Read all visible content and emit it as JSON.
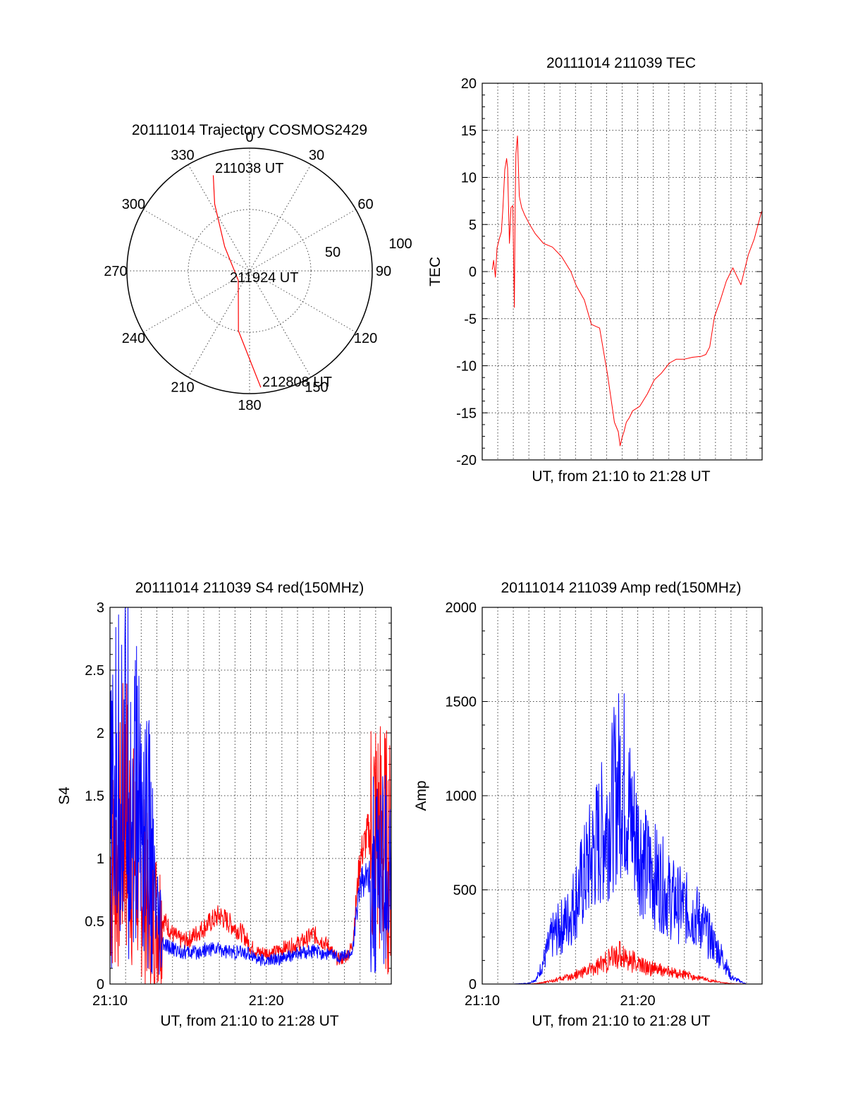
{
  "colors": {
    "red": "#ff0000",
    "blue": "#0000ff",
    "axis": "#000000",
    "grid": "#444444"
  },
  "chart_data": [
    {
      "type": "scatter",
      "kind": "polar-trajectory",
      "title": "20111014 Trajectory COSMOS2429",
      "angle_labels": [
        "0",
        "30",
        "60",
        "90",
        "120",
        "150",
        "180",
        "210",
        "240",
        "270",
        "300",
        "330"
      ],
      "radial_labels": [
        "50",
        "100"
      ],
      "radial_max": 100,
      "annotations": [
        "211038 UT",
        "211924 UT",
        "212808 UT"
      ],
      "grid": true,
      "series": [
        {
          "color": "#ff0000",
          "points": [
            [
              339.2,
              83.3
            ],
            [
              332.4,
              61.4
            ],
            [
              314.2,
              28.3
            ],
            [
              230.1,
              12.0
            ],
            [
              190.5,
              49.7
            ],
            [
              174.5,
              95.4
            ]
          ]
        }
      ]
    },
    {
      "type": "line",
      "title": "20111014 211039 TEC",
      "xlabel": "UT, from 21:10 to 21:28 UT",
      "ylabel": "TEC",
      "xlim": [
        "21:10:00",
        "21:28:00"
      ],
      "ylim": [
        -20,
        20
      ],
      "yticks": [
        "20",
        "15",
        "10",
        "5",
        "0",
        "-5",
        "-10",
        "-15",
        "-20"
      ],
      "grid": true,
      "series": [
        {
          "color": "#ff0000",
          "x": [
            "21:10:39",
            "21:10:44",
            "21:10:51",
            "21:10:57",
            "21:11:06",
            "21:11:14",
            "21:11:20",
            "21:11:27",
            "21:11:34",
            "21:11:38",
            "21:11:45",
            "21:11:51",
            "21:11:58",
            "21:12:04",
            "21:12:07",
            "21:12:10",
            "21:12:16",
            "21:12:23",
            "21:12:32",
            "21:12:44",
            "21:13:03",
            "21:13:25",
            "21:13:56",
            "21:14:31",
            "21:15:06",
            "21:15:42",
            "21:16:03",
            "21:16:34",
            "21:17:01",
            "21:17:33",
            "21:18:04",
            "21:18:30",
            "21:18:45",
            "21:18:52",
            "21:19:00",
            "21:19:07",
            "21:19:16",
            "21:19:28",
            "21:19:40",
            "21:20:08",
            "21:20:37",
            "21:21:04",
            "21:21:31",
            "21:22:03",
            "21:22:29",
            "21:23:00",
            "21:23:31",
            "21:24:06",
            "21:24:23",
            "21:24:38",
            "21:24:56",
            "21:25:17",
            "21:25:42",
            "21:26:07",
            "21:26:38",
            "21:27:07",
            "21:27:30",
            "21:27:58"
          ],
          "y": [
            0.2,
            1.2,
            -0.6,
            2.5,
            3.5,
            4.2,
            6.8,
            10.8,
            12.0,
            11.0,
            3.0,
            6.8,
            7.0,
            -3.8,
            7.0,
            12.5,
            14.4,
            8.0,
            6.8,
            6.0,
            5.0,
            4.0,
            3.0,
            2.6,
            1.6,
            0.0,
            -1.5,
            -3.0,
            -5.6,
            -6.0,
            -11.0,
            -16.0,
            -17.0,
            -18.5,
            -17.6,
            -17.0,
            -16.0,
            -15.5,
            -14.8,
            -14.3,
            -13.0,
            -11.5,
            -10.8,
            -9.7,
            -9.3,
            -9.3,
            -9.1,
            -9.0,
            -8.8,
            -8.0,
            -4.8,
            -3.2,
            -1.0,
            0.4,
            -1.4,
            1.8,
            3.5,
            6.4
          ]
        }
      ]
    },
    {
      "type": "line",
      "title": "20111014 211039 S4 red(150MHz)",
      "xlabel": "UT, from 21:10 to 21:28 UT",
      "ylabel": "S4",
      "xlim": [
        "21:10:00",
        "21:28:00"
      ],
      "ylim": [
        0,
        3
      ],
      "xticks": [
        "21:10",
        "21:20"
      ],
      "yticks": [
        "3",
        "2.5",
        "2",
        "1.5",
        "1",
        "0.5",
        "0"
      ],
      "grid": true,
      "series": [
        {
          "color": "#ff0000",
          "x": [
            "21:10:00",
            "21:10:30",
            "21:11:00",
            "21:11:30",
            "21:12:00",
            "21:12:30",
            "21:13:00",
            "21:13:30",
            "21:14:00",
            "21:14:30",
            "21:15:00",
            "21:15:30",
            "21:16:00",
            "21:16:30",
            "21:17:00",
            "21:17:30",
            "21:18:00",
            "21:18:30",
            "21:19:00",
            "21:19:30",
            "21:20:00",
            "21:20:30",
            "21:21:00",
            "21:21:30",
            "21:22:00",
            "21:22:30",
            "21:23:00",
            "21:23:30",
            "21:24:00",
            "21:24:30",
            "21:25:00",
            "21:25:30",
            "21:26:00",
            "21:26:30",
            "21:27:00",
            "21:27:30",
            "21:28:00"
          ],
          "y": [
            0.9,
            1.0,
            1.4,
            1.0,
            0.9,
            0.6,
            0.55,
            0.5,
            0.4,
            0.35,
            0.35,
            0.4,
            0.45,
            0.5,
            0.55,
            0.5,
            0.45,
            0.4,
            0.3,
            0.25,
            0.25,
            0.25,
            0.28,
            0.3,
            0.32,
            0.35,
            0.4,
            0.35,
            0.3,
            0.2,
            0.2,
            0.3,
            1.0,
            1.2,
            1.2,
            1.1,
            1.0
          ]
        },
        {
          "color": "#0000ff",
          "x": [
            "21:10:00",
            "21:10:30",
            "21:11:00",
            "21:11:30",
            "21:12:00",
            "21:12:30",
            "21:13:00",
            "21:13:30",
            "21:14:00",
            "21:14:30",
            "21:15:00",
            "21:15:30",
            "21:16:00",
            "21:16:30",
            "21:17:00",
            "21:17:30",
            "21:18:00",
            "21:18:30",
            "21:19:00",
            "21:19:30",
            "21:20:00",
            "21:20:30",
            "21:21:00",
            "21:21:30",
            "21:22:00",
            "21:22:30",
            "21:23:00",
            "21:23:30",
            "21:24:00",
            "21:24:30",
            "21:25:00",
            "21:25:30",
            "21:26:00",
            "21:26:30",
            "21:27:00",
            "21:27:30",
            "21:28:00"
          ],
          "y": [
            1.2,
            1.6,
            1.7,
            1.5,
            1.4,
            1.1,
            0.4,
            0.3,
            0.28,
            0.26,
            0.25,
            0.25,
            0.27,
            0.28,
            0.28,
            0.26,
            0.25,
            0.25,
            0.24,
            0.2,
            0.18,
            0.2,
            0.2,
            0.22,
            0.24,
            0.25,
            0.26,
            0.25,
            0.24,
            0.22,
            0.22,
            0.25,
            0.8,
            0.85,
            0.9,
            0.85,
            0.8
          ]
        }
      ]
    },
    {
      "type": "line",
      "title": "20111014 211039 Amp red(150MHz)",
      "xlabel": "UT, from 21:10 to 21:28 UT",
      "ylabel": "Amp",
      "xlim": [
        "21:10:00",
        "21:28:00"
      ],
      "ylim": [
        0,
        2000
      ],
      "xticks": [
        "21:10",
        "21:20"
      ],
      "yticks": [
        "2000",
        "1500",
        "1000",
        "500",
        "0"
      ],
      "grid": true,
      "series": [
        {
          "color": "#0000ff",
          "x": [
            "21:10:00",
            "21:12:00",
            "21:13:00",
            "21:13:30",
            "21:14:00",
            "21:14:30",
            "21:15:00",
            "21:15:30",
            "21:16:00",
            "21:16:30",
            "21:17:00",
            "21:17:30",
            "21:18:00",
            "21:18:30",
            "21:19:00",
            "21:19:30",
            "21:20:00",
            "21:20:30",
            "21:21:00",
            "21:21:30",
            "21:22:00",
            "21:22:30",
            "21:23:00",
            "21:23:30",
            "21:24:00",
            "21:24:30",
            "21:25:00",
            "21:25:30",
            "21:26:00",
            "21:27:00",
            "21:28:00"
          ],
          "y": [
            0,
            0,
            5,
            30,
            150,
            280,
            330,
            380,
            500,
            620,
            750,
            850,
            950,
            1100,
            1250,
            1000,
            850,
            700,
            650,
            600,
            520,
            480,
            450,
            420,
            380,
            300,
            220,
            150,
            40,
            0,
            0
          ]
        },
        {
          "color": "#ff0000",
          "x": [
            "21:10:00",
            "21:12:00",
            "21:13:00",
            "21:13:30",
            "21:14:00",
            "21:14:30",
            "21:15:00",
            "21:15:30",
            "21:16:00",
            "21:16:30",
            "21:17:00",
            "21:17:30",
            "21:18:00",
            "21:18:30",
            "21:19:00",
            "21:19:30",
            "21:20:00",
            "21:20:30",
            "21:21:00",
            "21:21:30",
            "21:22:00",
            "21:22:30",
            "21:23:00",
            "21:23:30",
            "21:24:00",
            "21:24:30",
            "21:25:00",
            "21:25:30",
            "21:26:00",
            "21:27:00",
            "21:28:00"
          ],
          "y": [
            0,
            0,
            0,
            3,
            10,
            20,
            30,
            40,
            55,
            70,
            90,
            110,
            130,
            160,
            180,
            140,
            120,
            100,
            90,
            80,
            70,
            60,
            55,
            45,
            35,
            25,
            15,
            8,
            2,
            0,
            0
          ]
        }
      ]
    }
  ]
}
